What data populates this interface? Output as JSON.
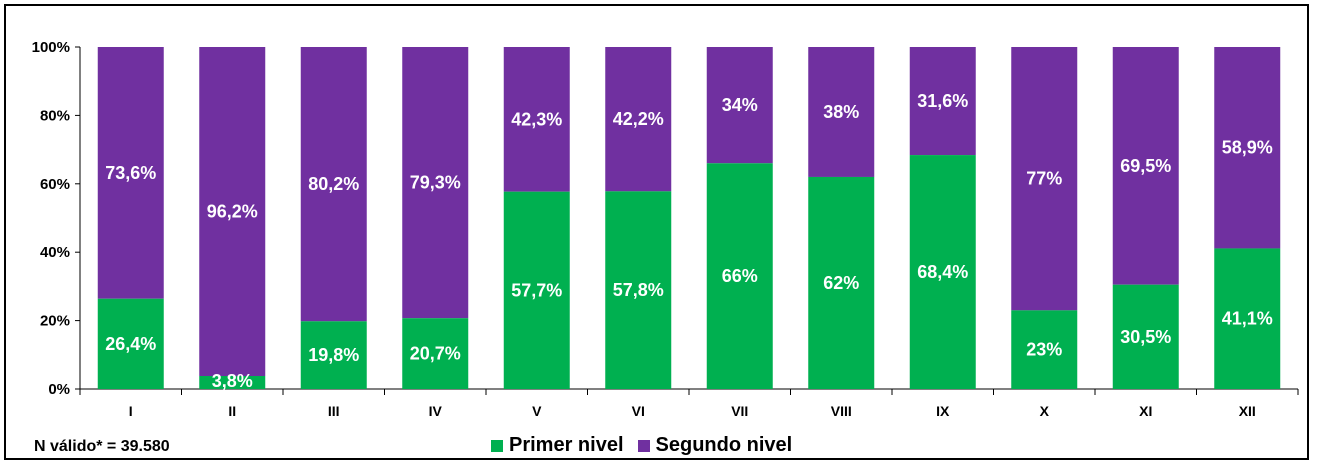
{
  "chart_data": {
    "type": "bar",
    "stacked": true,
    "categories": [
      "I",
      "II",
      "III",
      "IV",
      "V",
      "VI",
      "VII",
      "VIII",
      "IX",
      "X",
      "XI",
      "XII"
    ],
    "series": [
      {
        "name": "Primer nivel",
        "color": "#00b050",
        "values": [
          26.4,
          3.8,
          19.8,
          20.7,
          57.7,
          57.8,
          66,
          62,
          68.4,
          23,
          30.5,
          41.1
        ],
        "labels": [
          "26,4%",
          "3,8%",
          "19,8%",
          "20,7%",
          "57,7%",
          "57,8%",
          "66%",
          "62%",
          "68,4%",
          "23%",
          "30,5%",
          "41,1%"
        ]
      },
      {
        "name": "Segundo nivel",
        "color": "#7030a0",
        "values": [
          73.6,
          96.2,
          80.2,
          79.3,
          42.3,
          42.2,
          34,
          38,
          31.6,
          77,
          69.5,
          58.9
        ],
        "labels": [
          "73,6%",
          "96,2%",
          "80,2%",
          "79,3%",
          "42,3%",
          "42,2%",
          "34%",
          "38%",
          "31,6%",
          "77%",
          "69,5%",
          "58,9%"
        ]
      }
    ],
    "yticks": [
      "0%",
      "20%",
      "40%",
      "60%",
      "80%",
      "100%"
    ],
    "ylim": [
      0,
      100
    ],
    "legend_position": "bottom"
  },
  "note": "N válido* = 39.580"
}
